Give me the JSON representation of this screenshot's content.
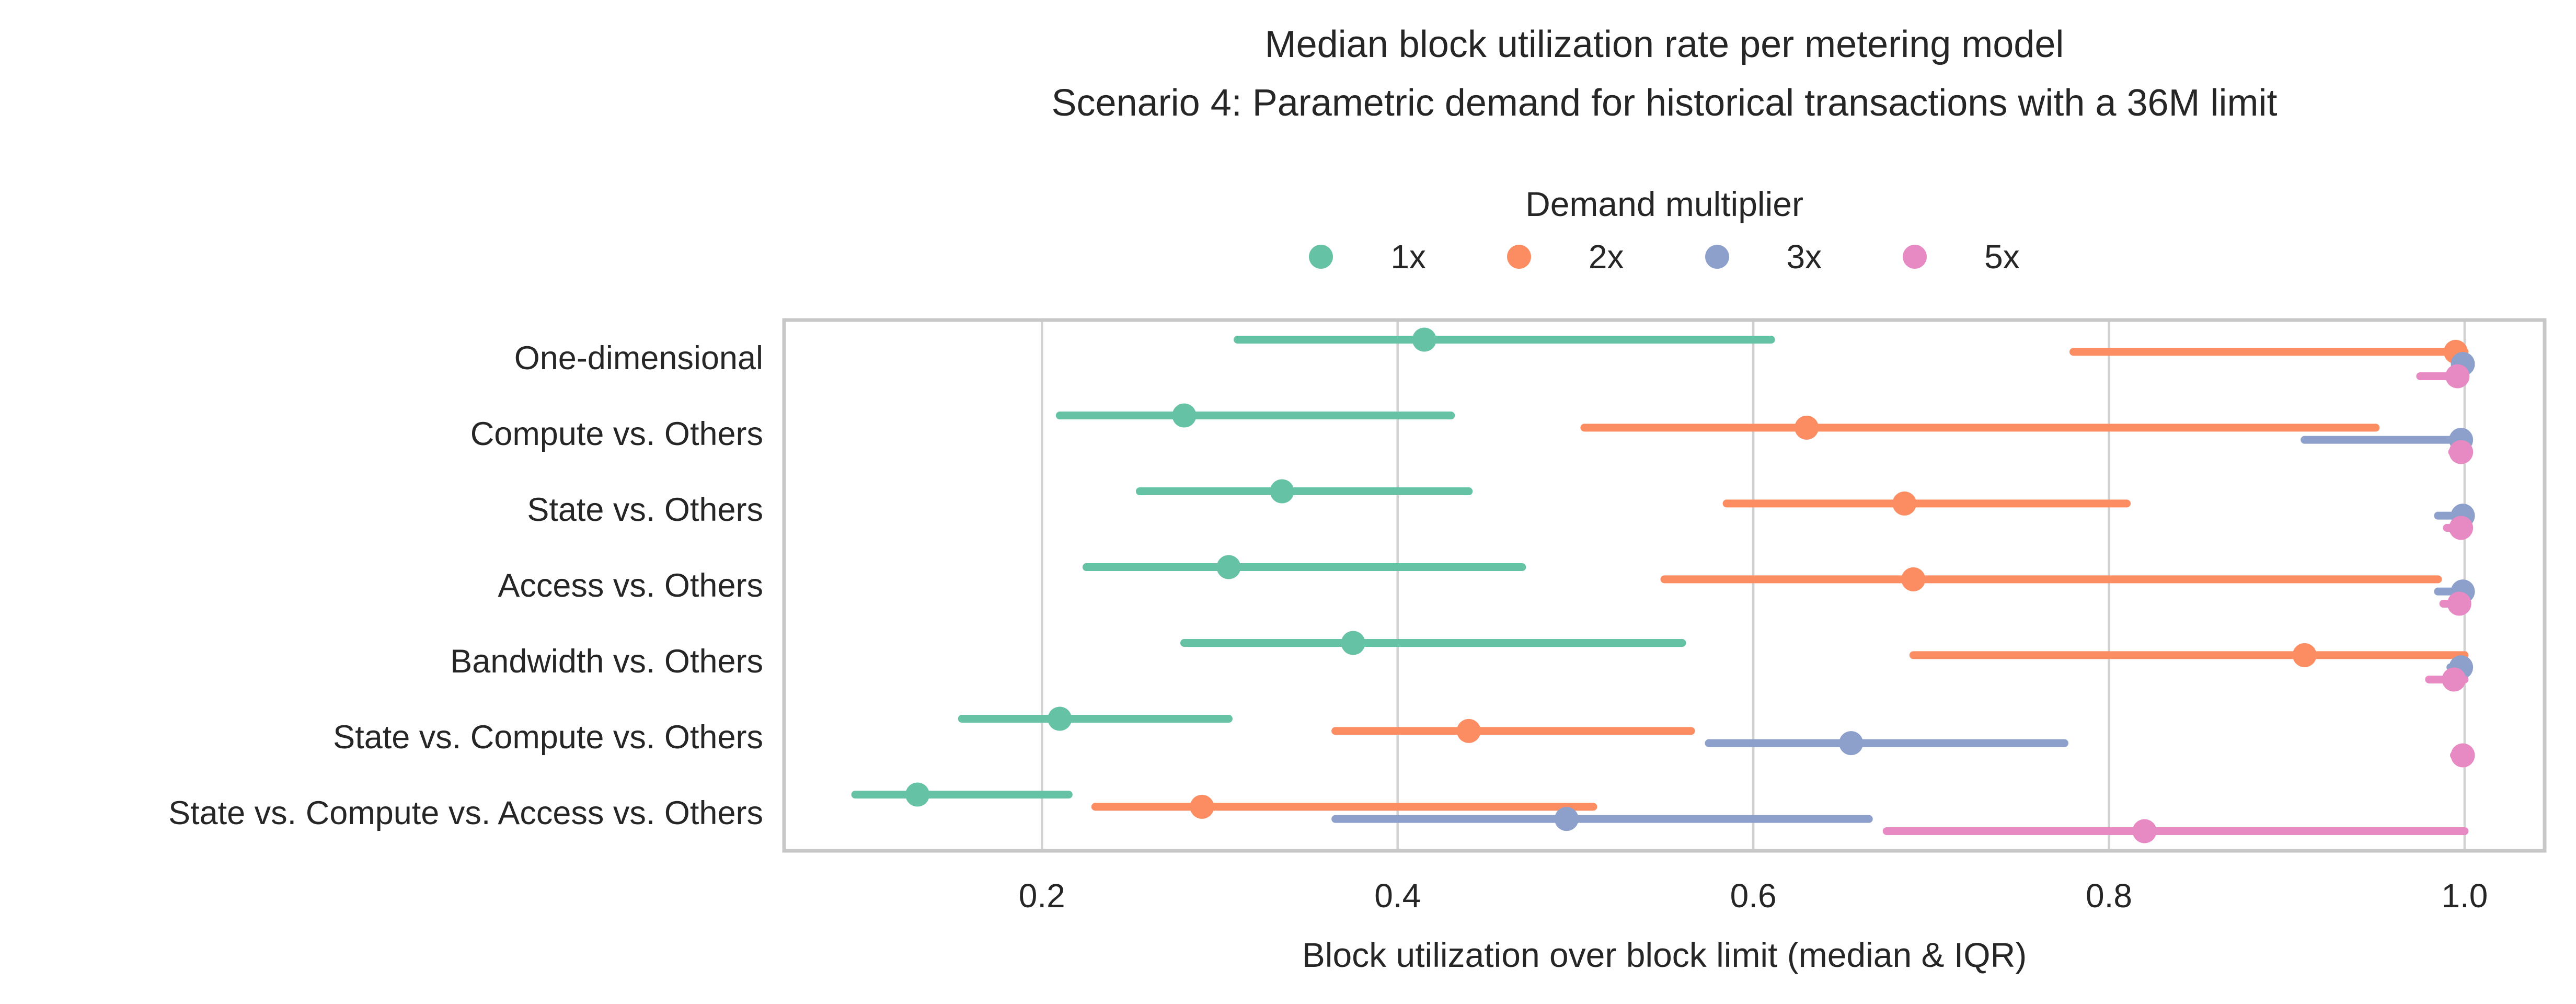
{
  "chart_data": {
    "type": "scatter",
    "subtype": "horizontal-pointplot-median-iqr",
    "title_line1": "Median block utilization rate per metering model",
    "title_line2": "Scenario 4: Parametric demand for historical transactions with a 36M limit",
    "legend_title": "Demand multiplier",
    "legend_position": "top-center",
    "xlabel": "Block utilization over block limit (median & IQR)",
    "xtick_labels": [
      "0.2",
      "0.4",
      "0.6",
      "0.8",
      "1.0"
    ],
    "xticks": [
      0.2,
      0.4,
      0.6,
      0.8,
      1.0
    ],
    "xlim": [
      0.055,
      1.045
    ],
    "grid": "vertical-only",
    "grid_color": "#d2d2d2",
    "spine_color": "#c8c8c8",
    "categories": [
      "One-dimensional",
      "Compute vs. Others",
      "State vs. Others",
      "Access vs. Others",
      "Bandwidth vs. Others",
      "State vs. Compute vs. Others",
      "State vs. Compute vs. Access vs. Others"
    ],
    "series": [
      {
        "name": "1x",
        "color": "#66c2a5",
        "points": [
          {
            "median": 0.415,
            "q1": 0.31,
            "q3": 0.61
          },
          {
            "median": 0.28,
            "q1": 0.21,
            "q3": 0.43
          },
          {
            "median": 0.335,
            "q1": 0.255,
            "q3": 0.44
          },
          {
            "median": 0.305,
            "q1": 0.225,
            "q3": 0.47
          },
          {
            "median": 0.375,
            "q1": 0.28,
            "q3": 0.56
          },
          {
            "median": 0.21,
            "q1": 0.155,
            "q3": 0.305
          },
          {
            "median": 0.13,
            "q1": 0.095,
            "q3": 0.215
          }
        ]
      },
      {
        "name": "2x",
        "color": "#fc8d62",
        "points": [
          {
            "median": 0.995,
            "q1": 0.78,
            "q3": 1.0
          },
          {
            "median": 0.63,
            "q1": 0.505,
            "q3": 0.95
          },
          {
            "median": 0.685,
            "q1": 0.585,
            "q3": 0.81
          },
          {
            "median": 0.69,
            "q1": 0.55,
            "q3": 0.985
          },
          {
            "median": 0.91,
            "q1": 0.69,
            "q3": 1.0
          },
          {
            "median": 0.44,
            "q1": 0.365,
            "q3": 0.565
          },
          {
            "median": 0.29,
            "q1": 0.23,
            "q3": 0.51
          }
        ]
      },
      {
        "name": "3x",
        "color": "#8da0cb",
        "points": [
          {
            "median": 0.999,
            "q1": 0.995,
            "q3": 1.0
          },
          {
            "median": 0.998,
            "q1": 0.91,
            "q3": 1.0
          },
          {
            "median": 0.999,
            "q1": 0.985,
            "q3": 1.0
          },
          {
            "median": 0.999,
            "q1": 0.985,
            "q3": 1.0
          },
          {
            "median": 0.998,
            "q1": 0.992,
            "q3": 1.0
          },
          {
            "median": 0.655,
            "q1": 0.575,
            "q3": 0.775
          },
          {
            "median": 0.495,
            "q1": 0.365,
            "q3": 0.665
          }
        ]
      },
      {
        "name": "5x",
        "color": "#e78ac3",
        "points": [
          {
            "median": 0.996,
            "q1": 0.975,
            "q3": 1.0
          },
          {
            "median": 0.998,
            "q1": 0.993,
            "q3": 1.0
          },
          {
            "median": 0.998,
            "q1": 0.99,
            "q3": 1.0
          },
          {
            "median": 0.997,
            "q1": 0.988,
            "q3": 1.0
          },
          {
            "median": 0.994,
            "q1": 0.98,
            "q3": 1.0
          },
          {
            "median": 0.999,
            "q1": 0.994,
            "q3": 1.0
          },
          {
            "median": 0.82,
            "q1": 0.675,
            "q3": 1.0
          }
        ]
      }
    ]
  }
}
